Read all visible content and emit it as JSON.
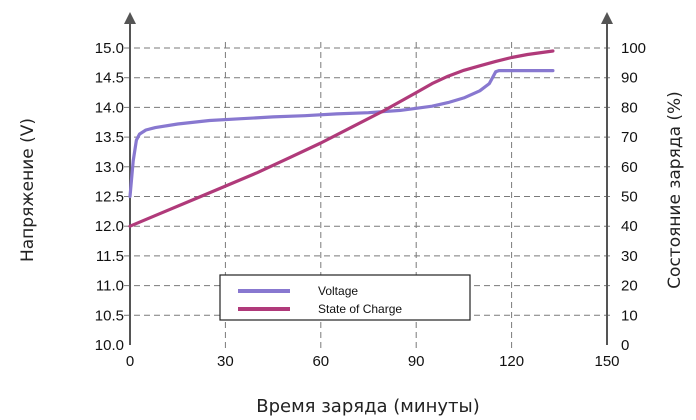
{
  "chart_data": {
    "type": "line",
    "xlabel": "Время заряда (минуты)",
    "ylabel_left": "Напряжение (V)",
    "ylabel_right": "Состояние заряда (%)",
    "xlim": [
      0,
      150
    ],
    "ylim_left": [
      10.0,
      15.0
    ],
    "ylim_right": [
      0,
      100
    ],
    "x_ticks": [
      "0",
      "30",
      "60",
      "90",
      "120",
      "150"
    ],
    "y_left_ticks": [
      "15.0",
      "14.5",
      "14.0",
      "13.5",
      "13.0",
      "12.5",
      "12.0",
      "11.5",
      "11.0",
      "10.5",
      "10.0"
    ],
    "y_right_ticks": [
      "100",
      "90",
      "80",
      "70",
      "60",
      "50",
      "40",
      "30",
      "20",
      "10",
      "0"
    ],
    "grid": true,
    "legend_position": "bottom-center",
    "colors": {
      "voltage": "#8878d0",
      "soc": "#b03a7a",
      "axis": "#555555",
      "grid": "#7a7a7a"
    },
    "series": [
      {
        "name": "Voltage",
        "axis": "left",
        "x": [
          0,
          1,
          2,
          3,
          5,
          8,
          15,
          25,
          35,
          45,
          55,
          65,
          75,
          85,
          95,
          100,
          105,
          110,
          113,
          115,
          116,
          120,
          125,
          133
        ],
        "values": [
          12.5,
          13.1,
          13.45,
          13.55,
          13.62,
          13.66,
          13.72,
          13.78,
          13.81,
          13.84,
          13.86,
          13.89,
          13.91,
          13.95,
          14.02,
          14.08,
          14.16,
          14.28,
          14.4,
          14.6,
          14.62,
          14.62,
          14.62,
          14.62
        ]
      },
      {
        "name": "State of Charge",
        "axis": "right",
        "x": [
          0,
          10,
          20,
          30,
          40,
          50,
          60,
          70,
          80,
          90,
          95,
          100,
          105,
          110,
          115,
          120,
          125,
          133
        ],
        "values": [
          40,
          44.5,
          49,
          53.5,
          58,
          63,
          68,
          73.5,
          79,
          85,
          88,
          90.5,
          92.5,
          94,
          95.5,
          96.8,
          97.8,
          99
        ]
      }
    ]
  }
}
